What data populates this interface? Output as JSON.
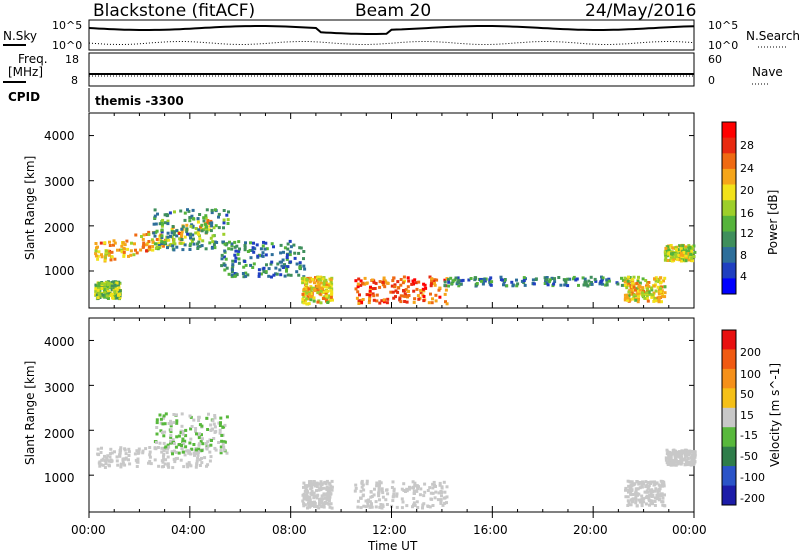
{
  "header": {
    "station": "Blackstone (fitACF)",
    "beam": "Beam 20",
    "date": "24/May/2016"
  },
  "panels": {
    "nsky_label": "N.Sky",
    "nsearch_label": "N.Search",
    "noise_ticks": [
      "10^5",
      "10^0"
    ],
    "freq_label_line1": "Freq.",
    "freq_label_line2": "[MHz]",
    "freq_ticks": [
      "18",
      "8"
    ],
    "nave_label": "Nave",
    "nave_ticks": [
      "60",
      "0"
    ],
    "cpid_label": "CPID",
    "cpid_value": "themis -3300"
  },
  "power_panel": {
    "ylabel": "Slant Range [km]",
    "cbar_label": "Power [dB]",
    "cbar_ticks": [
      "28",
      "24",
      "20",
      "16",
      "12",
      "8",
      "4"
    ],
    "colors": [
      "#0000ff",
      "#1f3fc0",
      "#2d6e9a",
      "#3f8f5c",
      "#55b33b",
      "#9dcf2a",
      "#f2e21a",
      "#f5a51a",
      "#ef6a12",
      "#e82a10",
      "#ff0000"
    ]
  },
  "velocity_panel": {
    "ylabel": "Slant Range [km]",
    "cbar_label": "Velocity [m s^-1]",
    "cbar_ticks": [
      "200",
      "100",
      "50",
      "15",
      "-15",
      "-50",
      "-100",
      "-200"
    ],
    "colors": [
      "#1c1ca8",
      "#2b54c8",
      "#2f7d4a",
      "#58b83c",
      "#c8c8c8",
      "#f5c018",
      "#f5901a",
      "#f05a12",
      "#e81010"
    ]
  },
  "y_ticks": [
    "4000",
    "3000",
    "2000",
    "1000"
  ],
  "x_ticks": [
    "00:00",
    "04:00",
    "08:00",
    "12:00",
    "16:00",
    "20:00",
    "00:00"
  ],
  "xlabel": "Time UT",
  "chart_data": {
    "type": "heatmap",
    "x_axis": "Time UT (hours)",
    "xlim": [
      0,
      24
    ],
    "y_axis": "Slant Range (km)",
    "ylim": [
      180,
      4500
    ],
    "panels": [
      {
        "name": "Power",
        "units": "dB",
        "range": [
          0,
          30
        ],
        "regions": [
          {
            "t": [
              0.2,
              4.8
            ],
            "r": [
              1200,
              1650
            ],
            "v": 20,
            "note": "rising band"
          },
          {
            "t": [
              0.2,
              1.2
            ],
            "r": [
              420,
              800
            ],
            "v": 14
          },
          {
            "t": [
              2.5,
              5.5
            ],
            "r": [
              1500,
              2400
            ],
            "v": 10
          },
          {
            "t": [
              5.2,
              8.5
            ],
            "r": [
              900,
              1700
            ],
            "v": 8
          },
          {
            "t": [
              8.4,
              9.6
            ],
            "r": [
              300,
              900
            ],
            "v": 18
          },
          {
            "t": [
              10.5,
              14.2
            ],
            "r": [
              300,
              900
            ],
            "v": 24
          },
          {
            "t": [
              14.0,
              21.5
            ],
            "r": [
              700,
              900
            ],
            "v": 8
          },
          {
            "t": [
              21.2,
              22.8
            ],
            "r": [
              350,
              900
            ],
            "v": 18
          },
          {
            "t": [
              22.8,
              24
            ],
            "r": [
              1250,
              1600
            ],
            "v": 16
          }
        ]
      },
      {
        "name": "Velocity",
        "units": "m s^-1",
        "range": [
          -200,
          200
        ],
        "regions": [
          {
            "t": [
              0.2,
              4.8
            ],
            "r": [
              1200,
              1650
            ],
            "v": 0
          },
          {
            "t": [
              2.5,
              5.5
            ],
            "r": [
              1500,
              2400
            ],
            "v": -20
          },
          {
            "t": [
              8.4,
              9.6
            ],
            "r": [
              300,
              900
            ],
            "v": 0
          },
          {
            "t": [
              10.5,
              14.2
            ],
            "r": [
              300,
              900
            ],
            "v": 0
          },
          {
            "t": [
              21.2,
              22.8
            ],
            "r": [
              350,
              900
            ],
            "v": 0
          },
          {
            "t": [
              22.8,
              24
            ],
            "r": [
              1250,
              1600
            ],
            "v": 0
          }
        ]
      }
    ]
  }
}
